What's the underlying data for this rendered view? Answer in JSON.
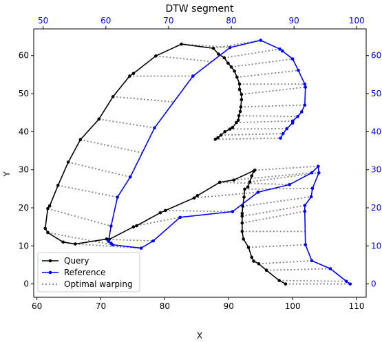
{
  "chart_data": {
    "type": "line",
    "title": "DTW segment",
    "xlabel": "X",
    "ylabel": "Y",
    "xlim": [
      59.5,
      111.5
    ],
    "ylim": [
      -3.5,
      67
    ],
    "xticks": [
      60,
      70,
      80,
      90,
      100,
      110
    ],
    "yticks": [
      0,
      10,
      20,
      30,
      40,
      50,
      60
    ],
    "top_axis": {
      "xlim": [
        48.5,
        101.5
      ],
      "ticks": [
        50,
        60,
        70,
        80,
        90,
        100
      ],
      "color": "#0000ff"
    },
    "right_axis": {
      "ticks": [
        0,
        10,
        20,
        30,
        40,
        50,
        60
      ],
      "color": "#0000ff"
    },
    "grid": false,
    "legend": {
      "placement": "lower-left",
      "entries": [
        "Query",
        "Reference",
        "Optimal warping"
      ]
    },
    "series": [
      {
        "name": "Query",
        "color": "#000000",
        "marker": "dot",
        "x": [
          98.9,
          97.9,
          95.9,
          94.7,
          93.9,
          93.6,
          93.1,
          92.3,
          92.1,
          92.1,
          92.1,
          92.1,
          92.2,
          92.4,
          92.5,
          93.0,
          93.3,
          93.6,
          93.9,
          94.1,
          90.8,
          88.6,
          85.1,
          84.6,
          80.1,
          79.3,
          75.6,
          75.1,
          71.3,
          70.9,
          66.0,
          64.1,
          61.7,
          61.3,
          61.7,
          62.0,
          63.3,
          64.9,
          66.8,
          69.7,
          71.9,
          74.5,
          75.1,
          78.6,
          82.6,
          87.6,
          88.4,
          89.3,
          89.9,
          90.4,
          90.9,
          91.3,
          91.7,
          91.7,
          92.0,
          92.0,
          91.9,
          91.8,
          91.6,
          91.5,
          91.2,
          90.6,
          90.2,
          89.4,
          88.8,
          88.3,
          87.9
        ],
        "y": [
          0,
          0.9,
          3.6,
          5.3,
          6.0,
          7.0,
          9.6,
          11.8,
          13.8,
          16.0,
          17.8,
          18.5,
          20.4,
          22.8,
          24.9,
          25.5,
          26.8,
          28.4,
          29.6,
          29.9,
          27.3,
          26.7,
          23.2,
          22.6,
          19.3,
          18.7,
          15.3,
          15.0,
          11.7,
          11.8,
          10.5,
          11.0,
          13.5,
          14.6,
          19.8,
          20.5,
          25.9,
          32.0,
          37.9,
          43.3,
          49.2,
          54.6,
          55.3,
          59.9,
          63.0,
          61.9,
          60.4,
          59.4,
          58.0,
          57.0,
          55.9,
          54.3,
          52.5,
          51.1,
          49.8,
          48.4,
          46.5,
          45.3,
          44.2,
          43.0,
          42.4,
          41.1,
          40.7,
          40.0,
          39.1,
          38.4,
          38.0
        ]
      },
      {
        "name": "Reference",
        "color": "#0000ff",
        "marker": "dot",
        "x": [
          109.0,
          108.4,
          105.9,
          103.0,
          102.0,
          101.9,
          101.9,
          102.9,
          103.1,
          104.1,
          104.0,
          103.0,
          99.5,
          94.6,
          90.6,
          82.4,
          78.2,
          76.3,
          71.8,
          71.6,
          71.2,
          71.6,
          72.6,
          74.6,
          78.4,
          84.4,
          90.2,
          95.0,
          98.0,
          98.4,
          100.0,
          100.9,
          101.9,
          102.0,
          101.9,
          101.4,
          100.8,
          100.0,
          100.0,
          99.1,
          98.5,
          98.1
        ],
        "y": [
          0,
          0.7,
          4.0,
          6.1,
          10.3,
          19.1,
          20.6,
          22.9,
          25.1,
          29.2,
          30.9,
          29.2,
          26.1,
          24.1,
          19.0,
          17.5,
          11.3,
          9.4,
          10.3,
          10.7,
          11.2,
          15.2,
          22.8,
          28.1,
          41.0,
          54.6,
          62.1,
          64.0,
          61.7,
          61.2,
          59.1,
          56.1,
          52.5,
          51.7,
          47.0,
          45.2,
          44.0,
          42.8,
          42.3,
          40.8,
          39.5,
          38.3
        ]
      }
    ],
    "warping_links": [
      [
        98.9,
        0,
        109.0,
        0
      ],
      [
        97.9,
        0.9,
        108.4,
        0.7
      ],
      [
        95.9,
        3.6,
        105.9,
        4.0
      ],
      [
        94.7,
        5.3,
        103.0,
        6.1
      ],
      [
        93.1,
        9.6,
        102.0,
        10.3
      ],
      [
        92.1,
        13.8,
        102.0,
        13.8
      ],
      [
        92.1,
        16.0,
        101.9,
        19.1
      ],
      [
        92.1,
        17.8,
        101.9,
        20.6
      ],
      [
        92.2,
        20.4,
        102.9,
        22.9
      ],
      [
        92.5,
        24.9,
        103.1,
        25.1
      ],
      [
        93.3,
        26.8,
        104.1,
        29.2
      ],
      [
        94.1,
        29.9,
        104.0,
        30.9
      ],
      [
        90.8,
        27.3,
        103.0,
        29.2
      ],
      [
        88.6,
        26.7,
        99.5,
        26.1
      ],
      [
        84.6,
        22.6,
        94.6,
        24.1
      ],
      [
        80.1,
        19.3,
        90.6,
        19.0
      ],
      [
        75.6,
        15.3,
        82.4,
        17.5
      ],
      [
        71.3,
        11.7,
        78.2,
        11.3
      ],
      [
        66.0,
        10.5,
        76.3,
        9.4
      ],
      [
        61.7,
        13.5,
        71.8,
        10.3
      ],
      [
        61.7,
        19.8,
        71.6,
        15.2
      ],
      [
        63.3,
        25.9,
        72.6,
        22.8
      ],
      [
        64.9,
        32.0,
        74.6,
        28.1
      ],
      [
        66.8,
        37.9,
        76.4,
        34.5
      ],
      [
        69.7,
        43.3,
        78.4,
        41.0
      ],
      [
        71.9,
        49.2,
        81.4,
        47.8
      ],
      [
        74.5,
        54.6,
        84.4,
        54.6
      ],
      [
        78.6,
        59.9,
        87.4,
        58.4
      ],
      [
        82.6,
        63.0,
        90.2,
        62.1
      ],
      [
        87.6,
        61.9,
        95.0,
        64.0
      ],
      [
        89.3,
        59.4,
        98.0,
        61.7
      ],
      [
        90.4,
        57.0,
        100.0,
        59.1
      ],
      [
        91.3,
        54.3,
        100.9,
        56.1
      ],
      [
        91.7,
        52.5,
        101.9,
        52.5
      ],
      [
        92.0,
        49.8,
        102.0,
        51.7
      ],
      [
        91.9,
        46.5,
        101.9,
        47.0
      ],
      [
        91.6,
        44.2,
        100.8,
        44.0
      ],
      [
        91.2,
        42.4,
        100.0,
        42.8
      ],
      [
        90.2,
        40.7,
        99.1,
        40.8
      ],
      [
        88.8,
        39.1,
        98.5,
        39.5
      ],
      [
        87.9,
        38.0,
        98.1,
        38.3
      ]
    ]
  }
}
